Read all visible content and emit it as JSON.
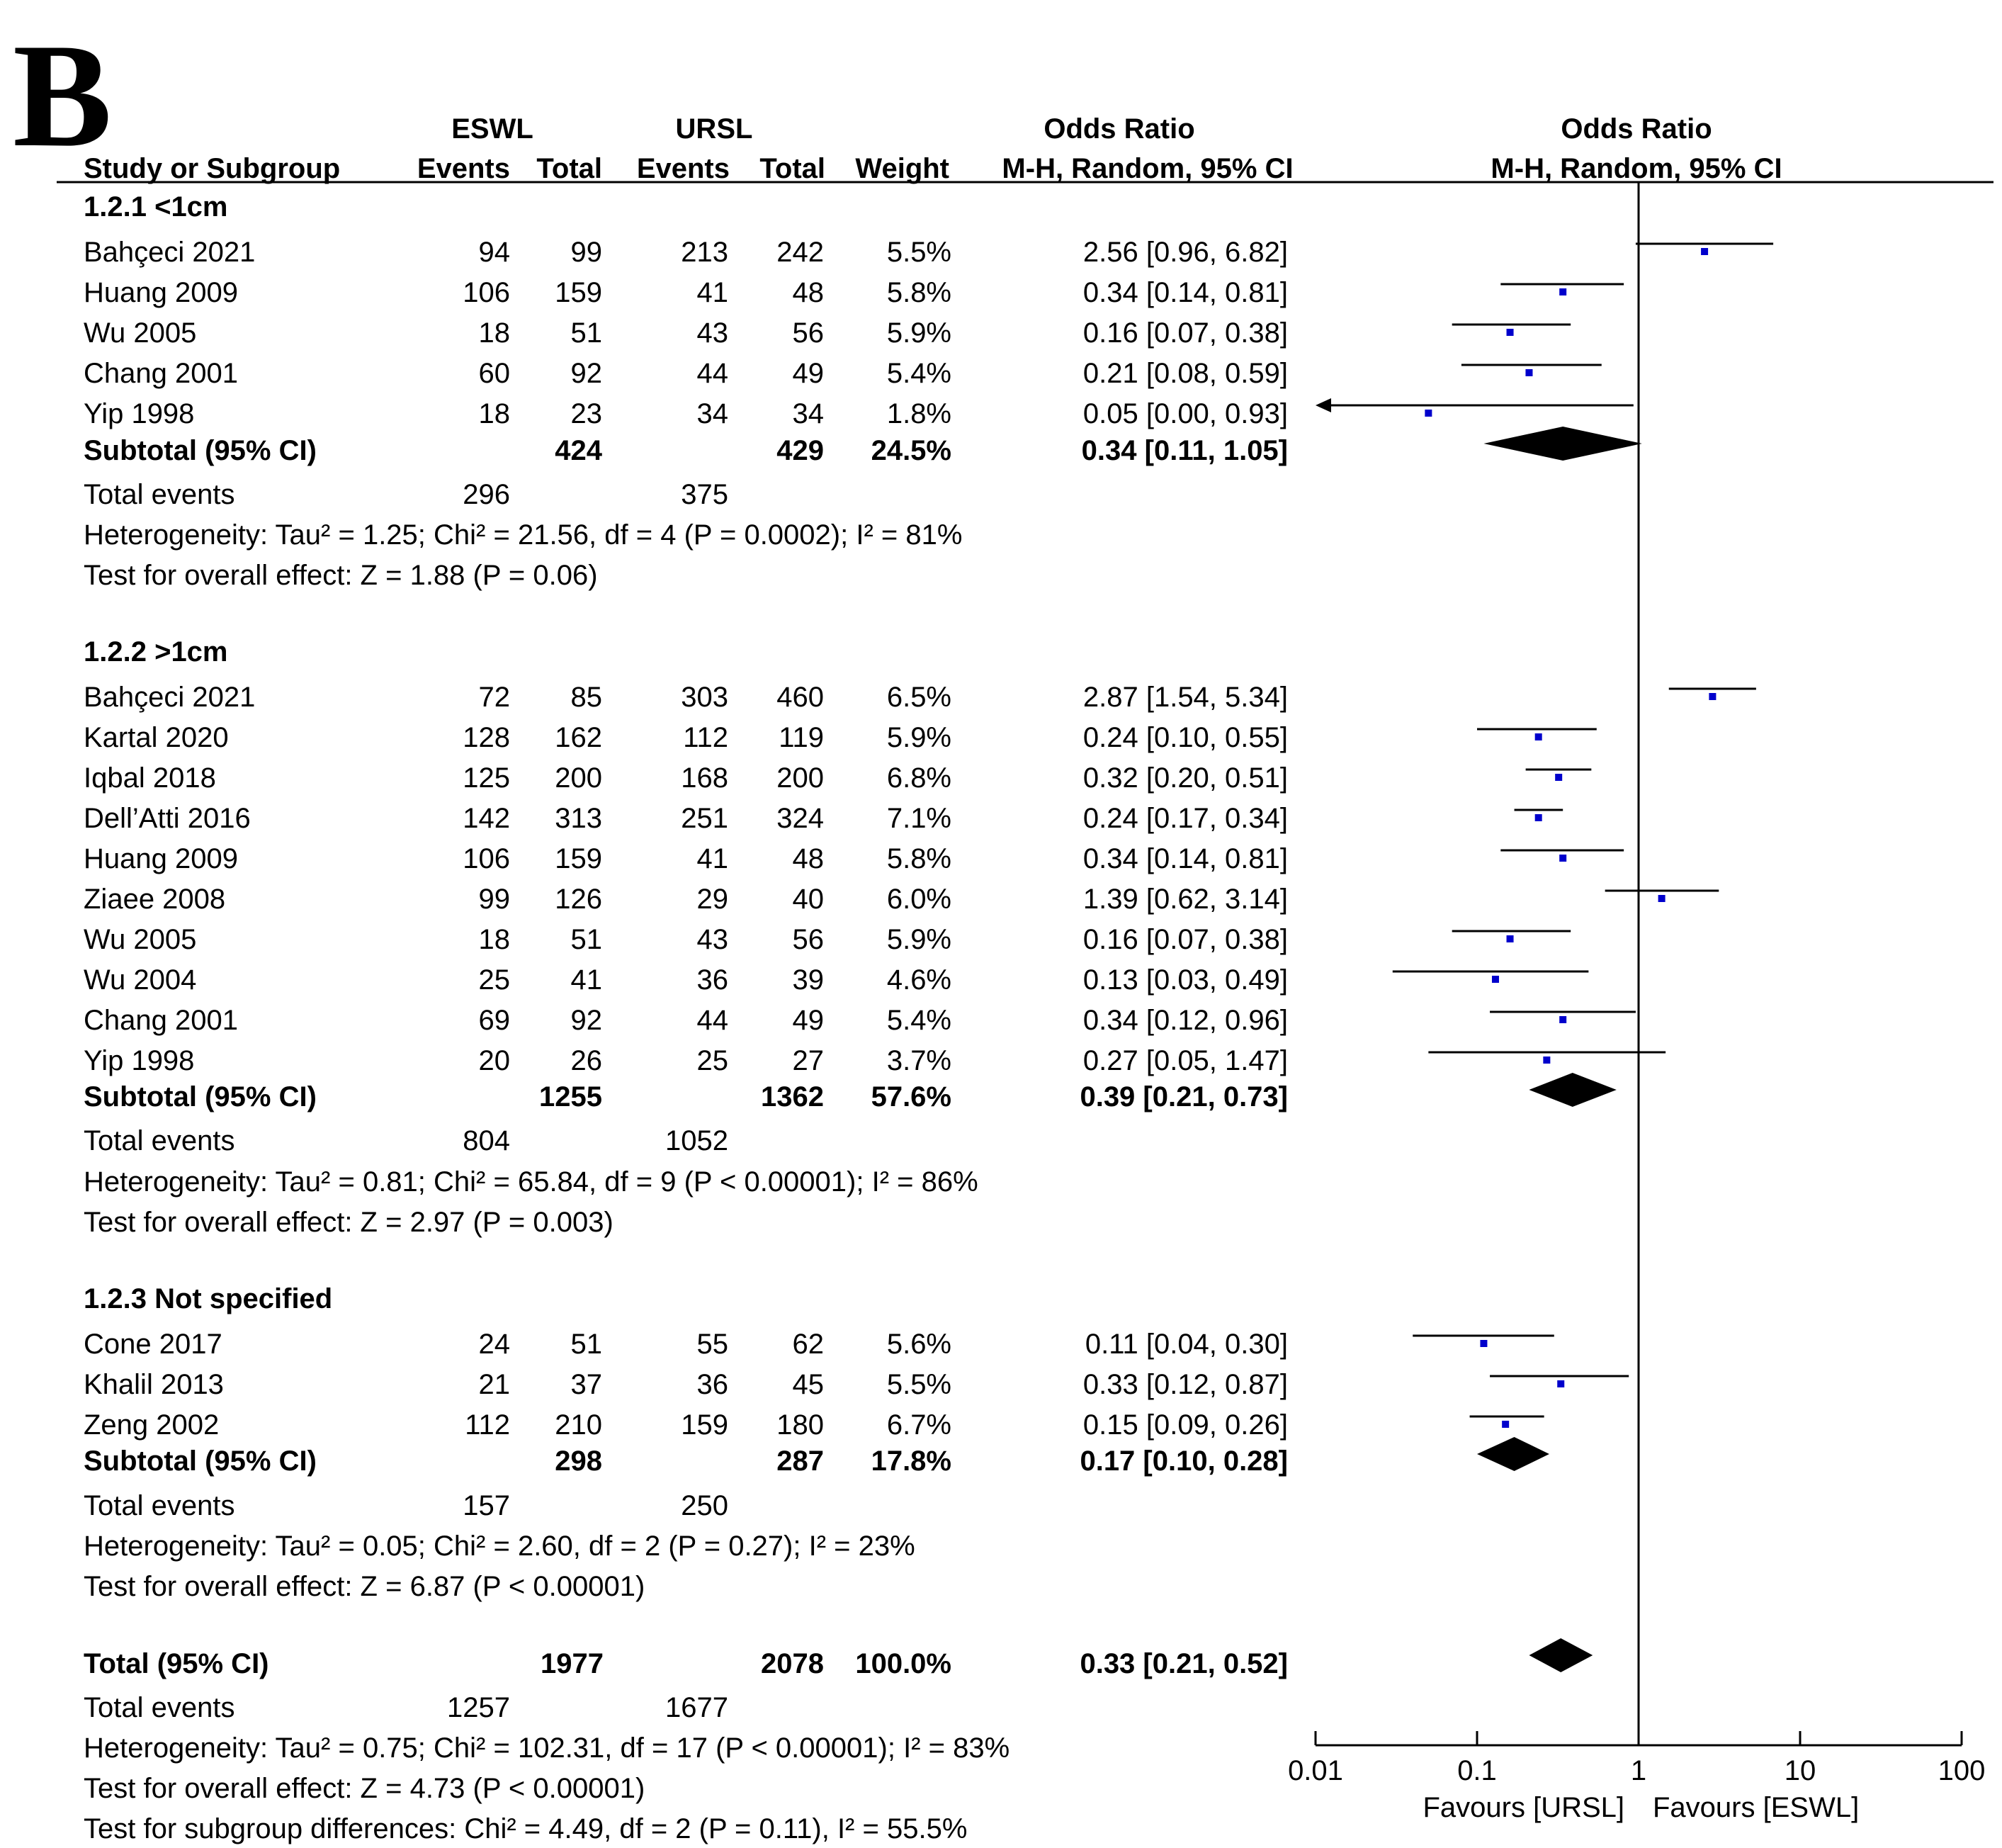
{
  "panel_label": "B",
  "header": {
    "eswl": "ESWL",
    "ursl": "URSL",
    "odds_ratio": "Odds Ratio",
    "study": "Study or Subgroup",
    "events": "Events",
    "total": "Total",
    "weight": "Weight",
    "method": "M-H, Random, 95% CI"
  },
  "chart_data": {
    "type": "forest",
    "title": "Odds Ratio M-H, Random, 95% CI",
    "axis": {
      "scale": "log",
      "range": [
        0.01,
        100
      ],
      "ticks": [
        0.01,
        0.1,
        1,
        10,
        100
      ],
      "tick_labels": [
        "0.01",
        "0.1",
        "1",
        "10",
        "100"
      ],
      "reference_line": 1,
      "favours_left": "Favours [URSL]",
      "favours_right": "Favours [ESWL]"
    },
    "subgroups": [
      {
        "title": "1.2.1 <1cm",
        "studies": [
          {
            "name": "Bahçeci 2021",
            "eswl_events": "94",
            "eswl_total": "99",
            "ursl_events": "213",
            "ursl_total": "242",
            "weight": "5.5%",
            "ci_text": "2.56 [0.96, 6.82]",
            "or": 2.56,
            "lo": 0.96,
            "hi": 6.82
          },
          {
            "name": "Huang 2009",
            "eswl_events": "106",
            "eswl_total": "159",
            "ursl_events": "41",
            "ursl_total": "48",
            "weight": "5.8%",
            "ci_text": "0.34 [0.14, 0.81]",
            "or": 0.34,
            "lo": 0.14,
            "hi": 0.81
          },
          {
            "name": "Wu 2005",
            "eswl_events": "18",
            "eswl_total": "51",
            "ursl_events": "43",
            "ursl_total": "56",
            "weight": "5.9%",
            "ci_text": "0.16 [0.07, 0.38]",
            "or": 0.16,
            "lo": 0.07,
            "hi": 0.38
          },
          {
            "name": "Chang 2001",
            "eswl_events": "60",
            "eswl_total": "92",
            "ursl_events": "44",
            "ursl_total": "49",
            "weight": "5.4%",
            "ci_text": "0.21 [0.08, 0.59]",
            "or": 0.21,
            "lo": 0.08,
            "hi": 0.59
          },
          {
            "name": "Yip 1998",
            "eswl_events": "18",
            "eswl_total": "23",
            "ursl_events": "34",
            "ursl_total": "34",
            "weight": "1.8%",
            "ci_text": "0.05 [0.00, 0.93]",
            "or": 0.05,
            "lo": 0.001,
            "hi": 0.93,
            "lo_truncated": true
          }
        ],
        "subtotal": {
          "label": "Subtotal (95% CI)",
          "eswl_total": "424",
          "ursl_total": "429",
          "weight": "24.5%",
          "ci_text": "0.34 [0.11, 1.05]",
          "or": 0.34,
          "lo": 0.11,
          "hi": 1.05
        },
        "total_events": {
          "label": "Total events",
          "eswl": "296",
          "ursl": "375"
        },
        "heterogeneity": "Heterogeneity: Tau² = 1.25; Chi² = 21.56, df = 4 (P = 0.0002); I² = 81%",
        "overall_effect": "Test for overall effect: Z = 1.88 (P = 0.06)"
      },
      {
        "title": "1.2.2 >1cm",
        "studies": [
          {
            "name": "Bahçeci 2021",
            "eswl_events": "72",
            "eswl_total": "85",
            "ursl_events": "303",
            "ursl_total": "460",
            "weight": "6.5%",
            "ci_text": "2.87 [1.54, 5.34]",
            "or": 2.87,
            "lo": 1.54,
            "hi": 5.34
          },
          {
            "name": "Kartal 2020",
            "eswl_events": "128",
            "eswl_total": "162",
            "ursl_events": "112",
            "ursl_total": "119",
            "weight": "5.9%",
            "ci_text": "0.24 [0.10, 0.55]",
            "or": 0.24,
            "lo": 0.1,
            "hi": 0.55
          },
          {
            "name": "Iqbal 2018",
            "eswl_events": "125",
            "eswl_total": "200",
            "ursl_events": "168",
            "ursl_total": "200",
            "weight": "6.8%",
            "ci_text": "0.32 [0.20, 0.51]",
            "or": 0.32,
            "lo": 0.2,
            "hi": 0.51
          },
          {
            "name": "Dell’Atti 2016",
            "eswl_events": "142",
            "eswl_total": "313",
            "ursl_events": "251",
            "ursl_total": "324",
            "weight": "7.1%",
            "ci_text": "0.24 [0.17, 0.34]",
            "or": 0.24,
            "lo": 0.17,
            "hi": 0.34
          },
          {
            "name": "Huang 2009",
            "eswl_events": "106",
            "eswl_total": "159",
            "ursl_events": "41",
            "ursl_total": "48",
            "weight": "5.8%",
            "ci_text": "0.34 [0.14, 0.81]",
            "or": 0.34,
            "lo": 0.14,
            "hi": 0.81
          },
          {
            "name": "Ziaee 2008",
            "eswl_events": "99",
            "eswl_total": "126",
            "ursl_events": "29",
            "ursl_total": "40",
            "weight": "6.0%",
            "ci_text": "1.39 [0.62, 3.14]",
            "or": 1.39,
            "lo": 0.62,
            "hi": 3.14
          },
          {
            "name": "Wu 2005",
            "eswl_events": "18",
            "eswl_total": "51",
            "ursl_events": "43",
            "ursl_total": "56",
            "weight": "5.9%",
            "ci_text": "0.16 [0.07, 0.38]",
            "or": 0.16,
            "lo": 0.07,
            "hi": 0.38
          },
          {
            "name": "Wu 2004",
            "eswl_events": "25",
            "eswl_total": "41",
            "ursl_events": "36",
            "ursl_total": "39",
            "weight": "4.6%",
            "ci_text": "0.13 [0.03, 0.49]",
            "or": 0.13,
            "lo": 0.03,
            "hi": 0.49
          },
          {
            "name": "Chang 2001",
            "eswl_events": "69",
            "eswl_total": "92",
            "ursl_events": "44",
            "ursl_total": "49",
            "weight": "5.4%",
            "ci_text": "0.34 [0.12, 0.96]",
            "or": 0.34,
            "lo": 0.12,
            "hi": 0.96
          },
          {
            "name": "Yip 1998",
            "eswl_events": "20",
            "eswl_total": "26",
            "ursl_events": "25",
            "ursl_total": "27",
            "weight": "3.7%",
            "ci_text": "0.27 [0.05, 1.47]",
            "or": 0.27,
            "lo": 0.05,
            "hi": 1.47
          }
        ],
        "subtotal": {
          "label": "Subtotal (95% CI)",
          "eswl_total": "1255",
          "ursl_total": "1362",
          "weight": "57.6%",
          "ci_text": "0.39 [0.21, 0.73]",
          "or": 0.39,
          "lo": 0.21,
          "hi": 0.73
        },
        "total_events": {
          "label": "Total events",
          "eswl": "804",
          "ursl": "1052"
        },
        "heterogeneity": "Heterogeneity: Tau² = 0.81; Chi² = 65.84, df = 9 (P < 0.00001); I² = 86%",
        "overall_effect": "Test for overall effect: Z = 2.97 (P = 0.003)"
      },
      {
        "title": "1.2.3 Not specified",
        "studies": [
          {
            "name": "Cone 2017",
            "eswl_events": "24",
            "eswl_total": "51",
            "ursl_events": "55",
            "ursl_total": "62",
            "weight": "5.6%",
            "ci_text": "0.11 [0.04, 0.30]",
            "or": 0.11,
            "lo": 0.04,
            "hi": 0.3
          },
          {
            "name": "Khalil 2013",
            "eswl_events": "21",
            "eswl_total": "37",
            "ursl_events": "36",
            "ursl_total": "45",
            "weight": "5.5%",
            "ci_text": "0.33 [0.12, 0.87]",
            "or": 0.33,
            "lo": 0.12,
            "hi": 0.87
          },
          {
            "name": "Zeng 2002",
            "eswl_events": "112",
            "eswl_total": "210",
            "ursl_events": "159",
            "ursl_total": "180",
            "weight": "6.7%",
            "ci_text": "0.15 [0.09, 0.26]",
            "or": 0.15,
            "lo": 0.09,
            "hi": 0.26
          }
        ],
        "subtotal": {
          "label": "Subtotal (95% CI)",
          "eswl_total": "298",
          "ursl_total": "287",
          "weight": "17.8%",
          "ci_text": "0.17 [0.10, 0.28]",
          "or": 0.17,
          "lo": 0.1,
          "hi": 0.28
        },
        "total_events": {
          "label": "Total events",
          "eswl": "157",
          "ursl": "250"
        },
        "heterogeneity": "Heterogeneity: Tau² = 0.05; Chi² = 2.60, df = 2 (P = 0.27); I² = 23%",
        "overall_effect": "Test for overall effect: Z = 6.87 (P < 0.00001)"
      }
    ],
    "overall": {
      "label": "Total (95% CI)",
      "eswl_total": "1977",
      "ursl_total": "2078",
      "weight": "100.0%",
      "ci_text": "0.33 [0.21, 0.52]",
      "or": 0.33,
      "lo": 0.21,
      "hi": 0.52,
      "total_events": {
        "label": "Total events",
        "eswl": "1257",
        "ursl": "1677"
      },
      "heterogeneity": "Heterogeneity: Tau² = 0.75; Chi² = 102.31, df = 17 (P < 0.00001); I² = 83%",
      "overall_effect": "Test for overall effect: Z = 4.73 (P < 0.00001)",
      "subgroup_differences": "Test for subgroup differences: Chi² = 4.49, df = 2 (P = 0.11), I² = 55.5%"
    },
    "colors": {
      "point": "#0000CC",
      "line": "#000000",
      "diamond": "#000000"
    }
  }
}
